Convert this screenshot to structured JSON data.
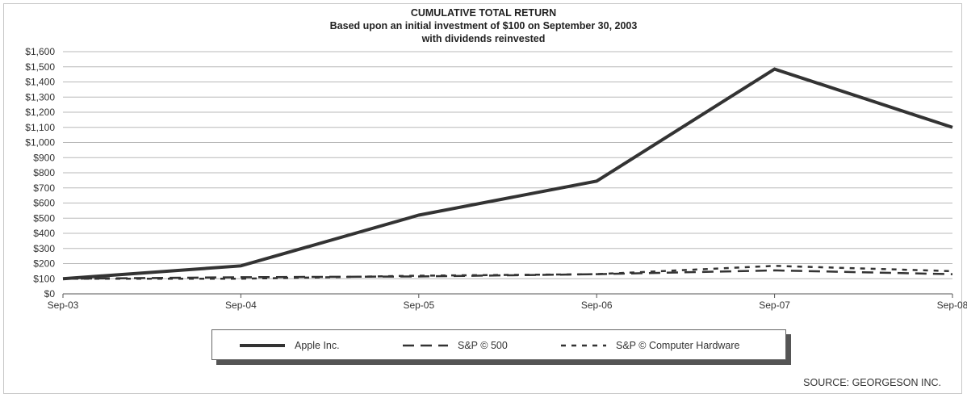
{
  "chart_data": {
    "type": "line",
    "title": "CUMULATIVE TOTAL RETURN",
    "subtitle_lines": [
      "Based upon an initial investment of $100 on September 30, 2003",
      "with dividends reinvested"
    ],
    "categories": [
      "Sep-03",
      "Sep-04",
      "Sep-05",
      "Sep-06",
      "Sep-07",
      "Sep-08"
    ],
    "series": [
      {
        "name": "Apple Inc.",
        "style": "solid",
        "values": [
          100,
          185,
          520,
          745,
          1485,
          1100
        ]
      },
      {
        "name": "S&P © 500",
        "style": "dashed",
        "values": [
          100,
          110,
          115,
          130,
          155,
          130
        ]
      },
      {
        "name": "S&P © Computer Hardware",
        "style": "dotted",
        "values": [
          100,
          100,
          120,
          130,
          185,
          150
        ]
      }
    ],
    "ylim": [
      0,
      1600
    ],
    "yticks": [
      0,
      100,
      200,
      300,
      400,
      500,
      600,
      700,
      800,
      900,
      1000,
      1100,
      1200,
      1300,
      1400,
      1500,
      1600
    ],
    "ytick_labels": [
      "$0",
      "$100",
      "$200",
      "$300",
      "$400",
      "$500",
      "$600",
      "$700",
      "$800",
      "$900",
      "$1,000",
      "$1,100",
      "$1,200",
      "$1,300",
      "$1,400",
      "$1,500",
      "$1,600"
    ],
    "grid": true,
    "legend_position": "bottom-center"
  },
  "colors": {
    "line": "#333333",
    "grid": "#b8b8b8",
    "legend_shadow": "#555555"
  },
  "source": "SOURCE: GEORGESON INC."
}
